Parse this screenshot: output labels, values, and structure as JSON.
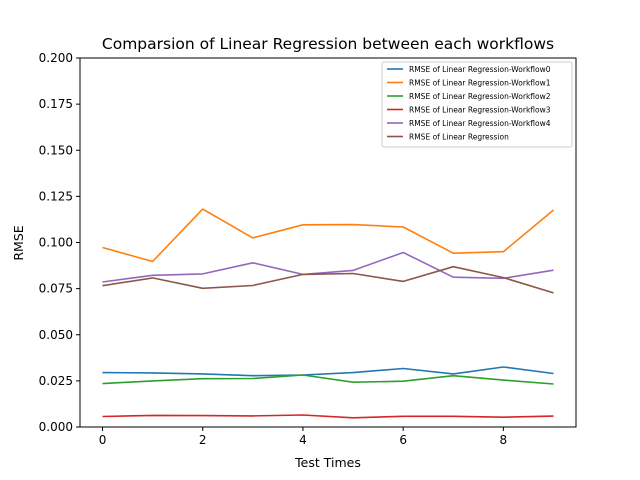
{
  "chart_data": {
    "type": "line",
    "title": "Comparsion of Linear Regression between each workflows",
    "xlabel": "Test Times",
    "ylabel": "RMSE",
    "xlim": [
      -0.45,
      9.45
    ],
    "ylim": [
      0,
      0.2
    ],
    "x_ticks": [
      "0",
      "2",
      "4",
      "6",
      "8"
    ],
    "y_ticks": [
      "0.000",
      "0.025",
      "0.050",
      "0.075",
      "0.100",
      "0.125",
      "0.150",
      "0.175",
      "0.200"
    ],
    "grid": false,
    "legend_position": "top-right",
    "x": [
      0,
      1,
      2,
      3,
      4,
      5,
      6,
      7,
      8,
      9
    ],
    "series": [
      {
        "name": "RMSE of Linear Regression-Workflow0",
        "color": "#1f77b4",
        "values": [
          0.0295,
          0.0293,
          0.0288,
          0.0278,
          0.0282,
          0.0295,
          0.0317,
          0.0288,
          0.0325,
          0.029
        ]
      },
      {
        "name": "RMSE of Linear Regression-Workflow1",
        "color": "#ff7f0e",
        "values": [
          0.0973,
          0.0897,
          0.1181,
          0.1025,
          0.1096,
          0.1097,
          0.1084,
          0.0942,
          0.095,
          0.1176
        ]
      },
      {
        "name": "RMSE of Linear Regression-Workflow2",
        "color": "#2ca02c",
        "values": [
          0.0235,
          0.025,
          0.0262,
          0.0263,
          0.0282,
          0.0243,
          0.0248,
          0.0278,
          0.0254,
          0.0233
        ]
      },
      {
        "name": "RMSE of Linear Regression-Workflow3",
        "color": "#d62728",
        "values": [
          0.0057,
          0.0063,
          0.0062,
          0.006,
          0.0065,
          0.005,
          0.0058,
          0.0058,
          0.0053,
          0.0059
        ]
      },
      {
        "name": "RMSE of Linear Regression-Workflow4",
        "color": "#9467bd",
        "values": [
          0.0786,
          0.0822,
          0.083,
          0.089,
          0.0827,
          0.0849,
          0.0946,
          0.0812,
          0.0806,
          0.085
        ]
      },
      {
        "name": "RMSE of Linear Regression",
        "color": "#8c564b",
        "values": [
          0.0766,
          0.0808,
          0.0752,
          0.0767,
          0.0827,
          0.0832,
          0.0789,
          0.0869,
          0.081,
          0.0727
        ]
      }
    ]
  }
}
